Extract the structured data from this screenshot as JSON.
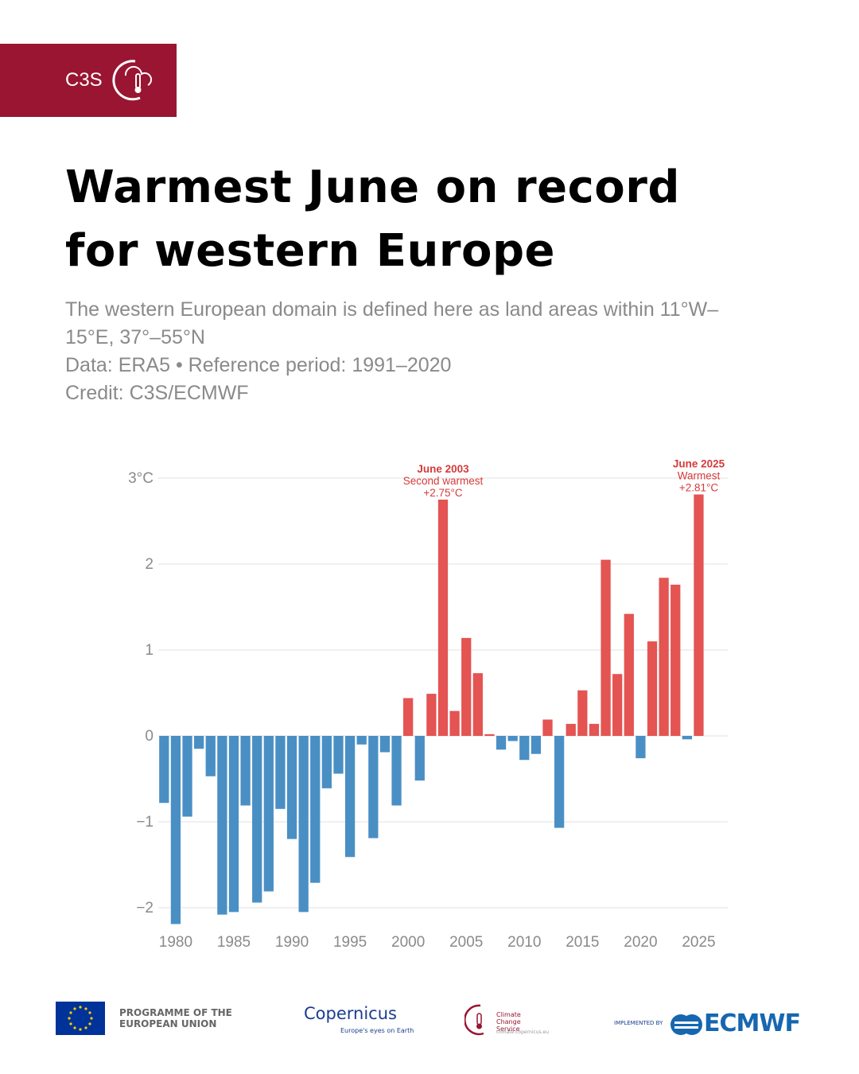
{
  "brand": {
    "label": "C3S"
  },
  "header": {
    "title": "Warmest June on record for western Europe",
    "subtitle": "The western European domain is defined here as land areas within 11°W–15°E, 37°–55°N",
    "source": "Data: ERA5 • Reference period: 1991–2020",
    "credit": "Credit: C3S/ECMWF"
  },
  "chart_data": {
    "type": "bar",
    "x": [
      1979,
      1980,
      1981,
      1982,
      1983,
      1984,
      1985,
      1986,
      1987,
      1988,
      1989,
      1990,
      1991,
      1992,
      1993,
      1994,
      1995,
      1996,
      1997,
      1998,
      1999,
      2000,
      2001,
      2002,
      2003,
      2004,
      2005,
      2006,
      2007,
      2008,
      2009,
      2010,
      2011,
      2012,
      2013,
      2014,
      2015,
      2016,
      2017,
      2018,
      2019,
      2020,
      2021,
      2022,
      2023,
      2024,
      2025
    ],
    "values": [
      -0.78,
      -2.19,
      -0.94,
      -0.15,
      -0.47,
      -2.08,
      -2.05,
      -0.81,
      -1.94,
      -1.81,
      -0.85,
      -1.2,
      -2.05,
      -1.71,
      -0.61,
      -0.44,
      -1.41,
      -0.1,
      -1.19,
      -0.19,
      -0.81,
      0.44,
      -0.52,
      0.49,
      2.75,
      0.29,
      1.14,
      0.73,
      0.02,
      -0.16,
      -0.06,
      -0.28,
      -0.21,
      0.19,
      -1.07,
      0.14,
      0.53,
      0.14,
      2.05,
      0.72,
      1.42,
      -0.26,
      1.1,
      1.84,
      1.76,
      -0.04,
      2.81
    ],
    "colors": {
      "positive": "#e35452",
      "negative": "#4a8fc4"
    },
    "xlim": [
      1978.5,
      2027.5
    ],
    "xticks": [
      1980,
      1985,
      1990,
      1995,
      2000,
      2005,
      2010,
      2015,
      2020,
      2025
    ],
    "ylim": [
      -2.3,
      3.3
    ],
    "yticks": [
      {
        "value": -2,
        "label": "−2"
      },
      {
        "value": -1,
        "label": "−1"
      },
      0,
      1,
      2,
      {
        "value": 3,
        "label": "3°C"
      }
    ],
    "grid": true,
    "annotations": [
      {
        "x": 2003,
        "lines": [
          "June 2003",
          "Second warmest",
          "+2.75°C"
        ]
      },
      {
        "x": 2025,
        "lines": [
          "June 2025",
          "Warmest",
          "+2.81°C"
        ]
      }
    ]
  },
  "footer": {
    "eu": "PROGRAMME OF THE EUROPEAN UNION",
    "copernicus": "Copernicus",
    "copernicus_tagline": "Europe's eyes on Earth",
    "c3s": "Climate Change Service",
    "c3s_url": "climate.copernicus.eu",
    "implemented": "IMPLEMENTED BY",
    "ecmwf": "ECMWF"
  }
}
